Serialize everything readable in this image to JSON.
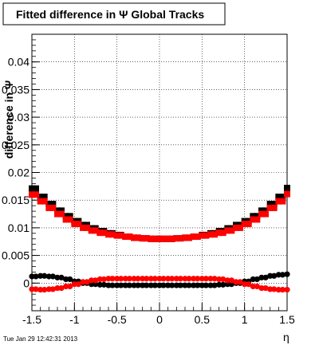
{
  "chart_data": {
    "type": "scatter",
    "title": "Fitted difference in Ψ   Global Tracks",
    "xlabel": "η",
    "ylabel": "difference in Ψ",
    "xlim": [
      -1.5,
      1.5
    ],
    "ylim": [
      -0.005,
      0.045
    ],
    "grid": true,
    "x_ticks": [
      "-1.5",
      "-1",
      "-0.5",
      "0",
      "0.5",
      "1",
      "1.5"
    ],
    "x_tick_values": [
      -1.5,
      -1,
      -0.5,
      0,
      0.5,
      1,
      1.5
    ],
    "y_ticks": [
      "0",
      "0.005",
      "0.01",
      "0.015",
      "0.02",
      "0.025",
      "0.03",
      "0.035",
      "0.04"
    ],
    "y_tick_values": [
      0,
      0.005,
      0.01,
      0.015,
      0.02,
      0.025,
      0.03,
      0.035,
      0.04
    ],
    "series": [
      {
        "marker": "square",
        "color": "#000000",
        "x": [
          -1.5,
          -1.4,
          -1.3,
          -1.2,
          -1.1,
          -1.0,
          -0.9,
          -0.8,
          -0.7,
          -0.6,
          -0.5,
          -0.4,
          -0.3,
          -0.2,
          -0.1,
          0.0,
          0.1,
          0.2,
          0.3,
          0.4,
          0.5,
          0.6,
          0.7,
          0.8,
          0.9,
          1.0,
          1.1,
          1.2,
          1.3,
          1.4,
          1.5
        ],
        "y": [
          0.0171,
          0.0156,
          0.0143,
          0.0131,
          0.0121,
          0.0112,
          0.0105,
          0.0099,
          0.0094,
          0.009,
          0.0087,
          0.0084,
          0.0082,
          0.0081,
          0.008,
          0.008,
          0.008,
          0.0081,
          0.0082,
          0.0084,
          0.0087,
          0.009,
          0.0094,
          0.0099,
          0.0105,
          0.0112,
          0.0121,
          0.0131,
          0.0143,
          0.0156,
          0.0172
        ]
      },
      {
        "marker": "square",
        "color": "#ff0000",
        "x": [
          -1.5,
          -1.4,
          -1.3,
          -1.2,
          -1.1,
          -1.0,
          -0.9,
          -0.8,
          -0.7,
          -0.6,
          -0.5,
          -0.4,
          -0.3,
          -0.2,
          -0.1,
          0.0,
          0.1,
          0.2,
          0.3,
          0.4,
          0.5,
          0.6,
          0.7,
          0.8,
          0.9,
          1.0,
          1.1,
          1.2,
          1.3,
          1.4,
          1.5
        ],
        "y": [
          0.016,
          0.0148,
          0.0136,
          0.0125,
          0.0115,
          0.0107,
          0.01,
          0.0095,
          0.0091,
          0.0088,
          0.0086,
          0.0084,
          0.0082,
          0.0081,
          0.008,
          0.008,
          0.008,
          0.0081,
          0.0082,
          0.0084,
          0.0086,
          0.0088,
          0.0091,
          0.0095,
          0.01,
          0.0107,
          0.0115,
          0.0125,
          0.0136,
          0.0148,
          0.0161
        ]
      },
      {
        "marker": "circle",
        "color": "#000000",
        "x": [
          -1.5,
          -1.4,
          -1.3,
          -1.2,
          -1.1,
          -1.0,
          -0.9,
          -0.8,
          -0.7,
          -0.6,
          -0.5,
          -0.4,
          -0.3,
          -0.2,
          -0.1,
          0.0,
          0.1,
          0.2,
          0.3,
          0.4,
          0.5,
          0.6,
          0.7,
          0.8,
          0.9,
          1.0,
          1.1,
          1.2,
          1.3,
          1.4,
          1.5
        ],
        "y": [
          0.0012,
          0.0013,
          0.0012,
          0.001,
          0.0007,
          0.0003,
          0.0,
          -0.0002,
          -0.0003,
          -0.0004,
          -0.0004,
          -0.0004,
          -0.0004,
          -0.0004,
          -0.0004,
          -0.0004,
          -0.0004,
          -0.0004,
          -0.0004,
          -0.0004,
          -0.0004,
          -0.0004,
          -0.0003,
          -0.0002,
          0.0,
          0.0003,
          0.0007,
          0.001,
          0.0013,
          0.0015,
          0.0016
        ]
      },
      {
        "marker": "circle",
        "color": "#ff0000",
        "x": [
          -1.5,
          -1.4,
          -1.3,
          -1.2,
          -1.1,
          -1.0,
          -0.9,
          -0.8,
          -0.7,
          -0.6,
          -0.5,
          -0.4,
          -0.3,
          -0.2,
          -0.1,
          0.0,
          0.1,
          0.2,
          0.3,
          0.4,
          0.5,
          0.6,
          0.7,
          0.8,
          0.9,
          1.0,
          1.1,
          1.2,
          1.3,
          1.4,
          1.5
        ],
        "y": [
          -0.0011,
          -0.0012,
          -0.0011,
          -0.0009,
          -0.0006,
          -0.0002,
          0.0002,
          0.0005,
          0.0007,
          0.0008,
          0.0008,
          0.0008,
          0.0008,
          0.0008,
          0.0008,
          0.0008,
          0.0008,
          0.0008,
          0.0008,
          0.0008,
          0.0008,
          0.0008,
          0.0007,
          0.0005,
          0.0002,
          -0.0002,
          -0.0006,
          -0.0009,
          -0.0011,
          -0.0012,
          -0.0012
        ]
      }
    ]
  },
  "footer_text": "Tue Jan 29 12:42:31 2013"
}
